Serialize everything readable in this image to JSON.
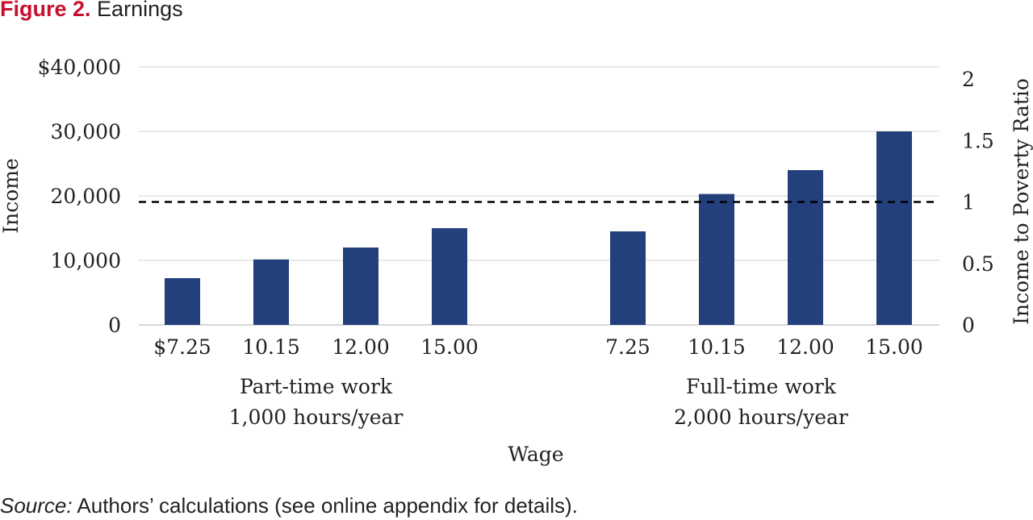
{
  "figure": {
    "number": "Figure 2.",
    "title": "Earnings"
  },
  "source": {
    "label": "Source:",
    "text": " Authors’ calculations (see online appendix for details)."
  },
  "chart_data": {
    "type": "bar",
    "xlabel": "Wage",
    "ylabel": "Income",
    "y2label": "Income to Poverty Ratio",
    "ylim": [
      0,
      40000
    ],
    "y2lim": [
      0,
      2
    ],
    "y_ticks": [
      "0",
      "10,000",
      "20,000",
      "30,000",
      "$40,000"
    ],
    "y2_ticks": [
      "0",
      "0.5",
      "1",
      "1.5",
      "2"
    ],
    "groups": [
      {
        "label_line1": "Part-time work",
        "label_line2": "1,000 hours/year",
        "categories": [
          "$7.25",
          "10.15",
          "12.00",
          "15.00"
        ],
        "values": [
          7250,
          10150,
          12000,
          15000
        ]
      },
      {
        "label_line1": "Full-time work",
        "label_line2": "2,000 hours/year",
        "categories": [
          "7.25",
          "10.15",
          "12.00",
          "15.00"
        ],
        "values": [
          14500,
          20300,
          24000,
          30000
        ]
      }
    ],
    "reference_line": {
      "ratio": 1,
      "style": "dashed",
      "color": "#000000"
    },
    "bar_color": "#23407c",
    "grid": true
  }
}
